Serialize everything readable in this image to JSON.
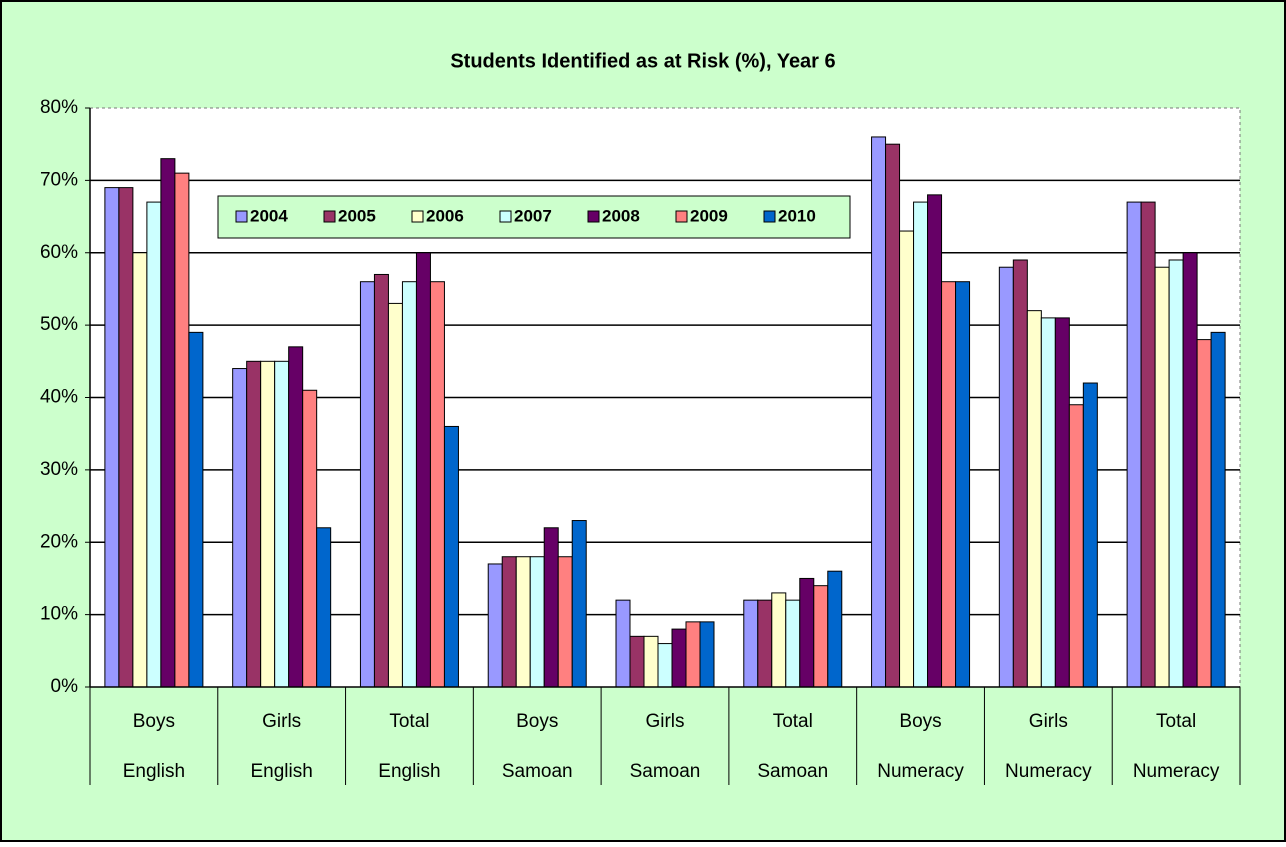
{
  "chart_data": {
    "type": "bar",
    "title": "Students Identified as at Risk (%), Year 6",
    "categories": [
      [
        "Boys",
        "English"
      ],
      [
        "Girls",
        "English"
      ],
      [
        "Total",
        "English"
      ],
      [
        "Boys",
        "Samoan"
      ],
      [
        "Girls",
        "Samoan"
      ],
      [
        "Total",
        "Samoan"
      ],
      [
        "Boys",
        "Numeracy"
      ],
      [
        "Girls",
        "Numeracy"
      ],
      [
        "Total",
        "Numeracy"
      ]
    ],
    "series": [
      {
        "name": "2004",
        "color": "#9999ff",
        "values": [
          69,
          44,
          56,
          17,
          12,
          12,
          76,
          58,
          67
        ]
      },
      {
        "name": "2005",
        "color": "#993366",
        "values": [
          69,
          45,
          57,
          18,
          7,
          12,
          75,
          59,
          67
        ]
      },
      {
        "name": "2006",
        "color": "#ffffcc",
        "values": [
          60,
          45,
          53,
          18,
          7,
          13,
          63,
          52,
          58
        ]
      },
      {
        "name": "2007",
        "color": "#ccffff",
        "values": [
          67,
          45,
          56,
          18,
          6,
          12,
          67,
          51,
          59
        ]
      },
      {
        "name": "2008",
        "color": "#660066",
        "values": [
          73,
          47,
          60,
          22,
          8,
          15,
          68,
          51,
          60
        ]
      },
      {
        "name": "2009",
        "color": "#ff8080",
        "values": [
          71,
          41,
          56,
          18,
          9,
          14,
          56,
          39,
          48
        ]
      },
      {
        "name": "2010",
        "color": "#0066cc",
        "values": [
          49,
          22,
          36,
          23,
          9,
          16,
          56,
          42,
          49
        ]
      }
    ],
    "ylim": [
      0,
      80
    ],
    "yticks": [
      {
        "value": 0,
        "label": "0%"
      },
      {
        "value": 10,
        "label": "10%"
      },
      {
        "value": 20,
        "label": "20%"
      },
      {
        "value": 30,
        "label": "30%"
      },
      {
        "value": 40,
        "label": "40%"
      },
      {
        "value": 50,
        "label": "50%"
      },
      {
        "value": 60,
        "label": "60%"
      },
      {
        "value": 70,
        "label": "70%"
      },
      {
        "value": 80,
        "label": "80%"
      }
    ],
    "grid": true,
    "legend": "top"
  }
}
